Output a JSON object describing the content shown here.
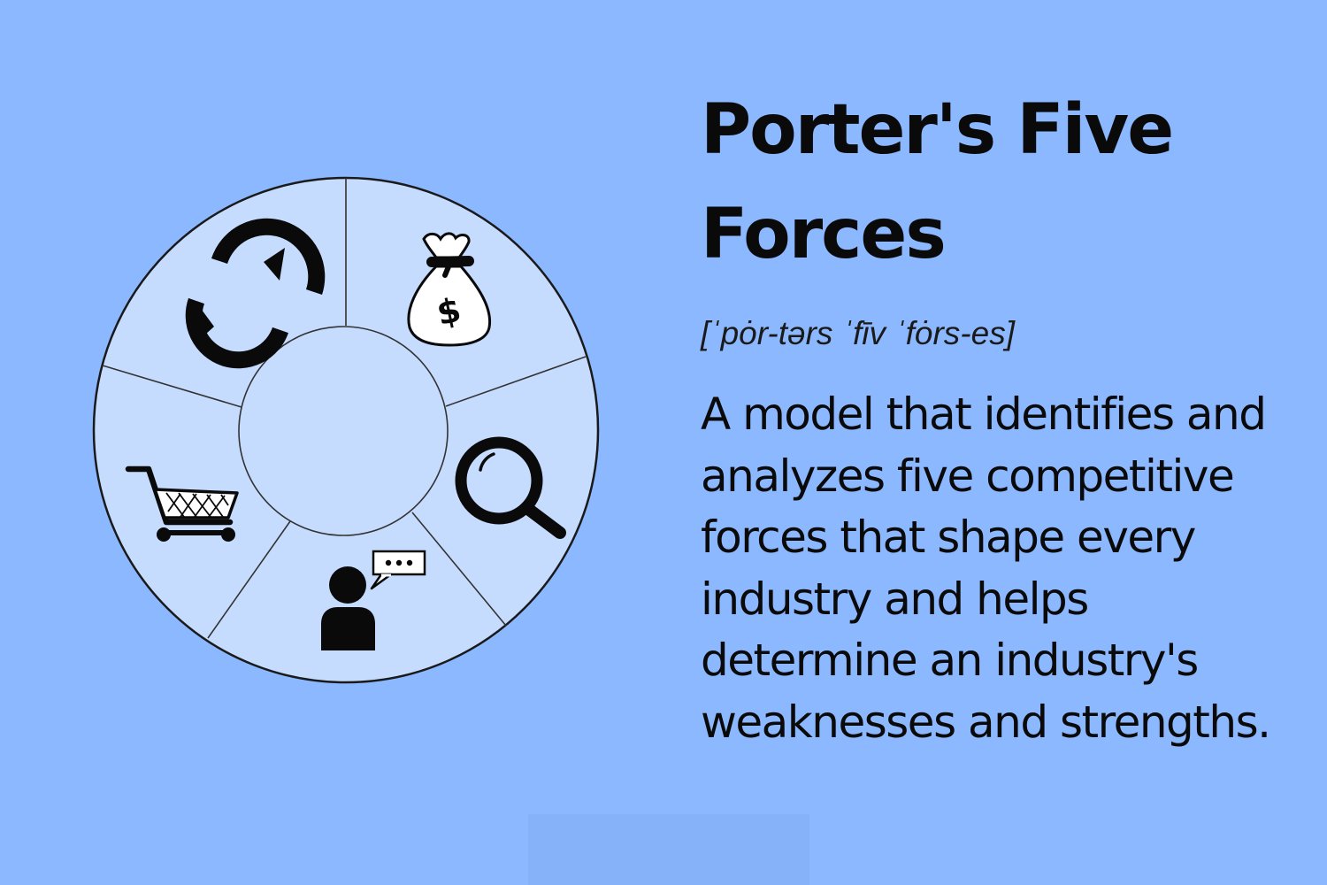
{
  "title": "Porter's Five Forces",
  "pronunciation": "[ˈpȯr-tərs ˈfīv ˈfȯrs-es]",
  "definition": "A model that identifies and analyzes five competitive forces that shape every industry and helps determine an industry's weaknesses and strengths.",
  "diagram": {
    "icons": [
      "refresh-icon",
      "money-bag-icon",
      "magnifier-icon",
      "person-speech-icon",
      "shopping-cart-icon"
    ]
  },
  "colors": {
    "background": "#8cb8ff",
    "wheel_fill": "#c6dcff",
    "outline": "#1a1a1a",
    "text": "#0a0a0a"
  }
}
